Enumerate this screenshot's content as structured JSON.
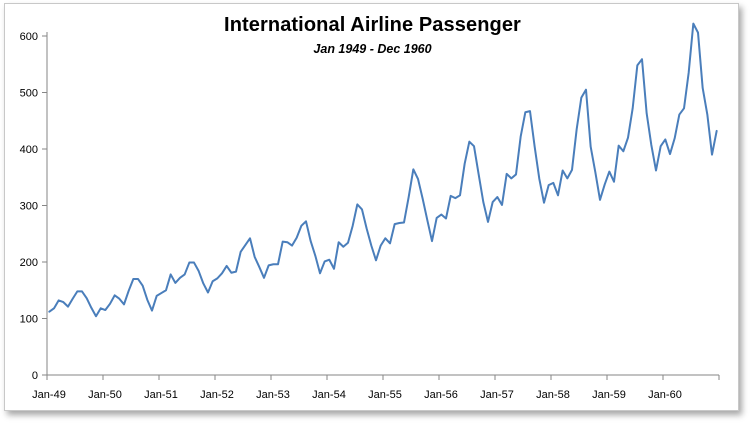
{
  "chart_data": {
    "type": "line",
    "title": "International Airline Passenger",
    "subtitle": "Jan 1949 - Dec 1960",
    "xlabel": "",
    "ylabel": "",
    "ylim": [
      0,
      650
    ],
    "yticks": [
      0,
      100,
      200,
      300,
      400,
      500,
      600
    ],
    "xtick_labels": [
      "Jan-49",
      "Jan-50",
      "Jan-51",
      "Jan-52",
      "Jan-53",
      "Jan-54",
      "Jan-55",
      "Jan-56",
      "Jan-57",
      "Jan-58",
      "Jan-59",
      "Jan-60"
    ],
    "grid": false,
    "legend": "none",
    "line_color": "#4a7ebb",
    "series": [
      {
        "values": [
          112,
          118,
          132,
          129,
          121,
          135,
          148,
          148,
          136,
          119,
          104,
          118,
          115,
          126,
          141,
          135,
          125,
          149,
          170,
          170,
          158,
          133,
          114,
          140,
          145,
          150,
          178,
          163,
          172,
          178,
          199,
          199,
          184,
          162,
          146,
          166,
          171,
          180,
          193,
          181,
          183,
          218,
          230,
          242,
          209,
          191,
          172,
          194,
          196,
          196,
          236,
          235,
          229,
          243,
          264,
          272,
          237,
          211,
          180,
          201,
          204,
          188,
          235,
          227,
          234,
          264,
          302,
          293,
          259,
          229,
          203,
          229,
          242,
          233,
          267,
          269,
          270,
          315,
          364,
          347,
          312,
          274,
          237,
          278,
          284,
          277,
          317,
          313,
          318,
          374,
          413,
          405,
          355,
          306,
          271,
          306,
          315,
          301,
          356,
          348,
          355,
          422,
          465,
          467,
          404,
          347,
          305,
          336,
          340,
          318,
          362,
          348,
          363,
          435,
          491,
          505,
          404,
          359,
          310,
          337,
          360,
          342,
          406,
          396,
          420,
          472,
          548,
          559,
          463,
          407,
          362,
          405,
          417,
          391,
          419,
          461,
          472,
          535,
          622,
          606,
          508,
          461,
          390,
          432
        ]
      }
    ]
  }
}
